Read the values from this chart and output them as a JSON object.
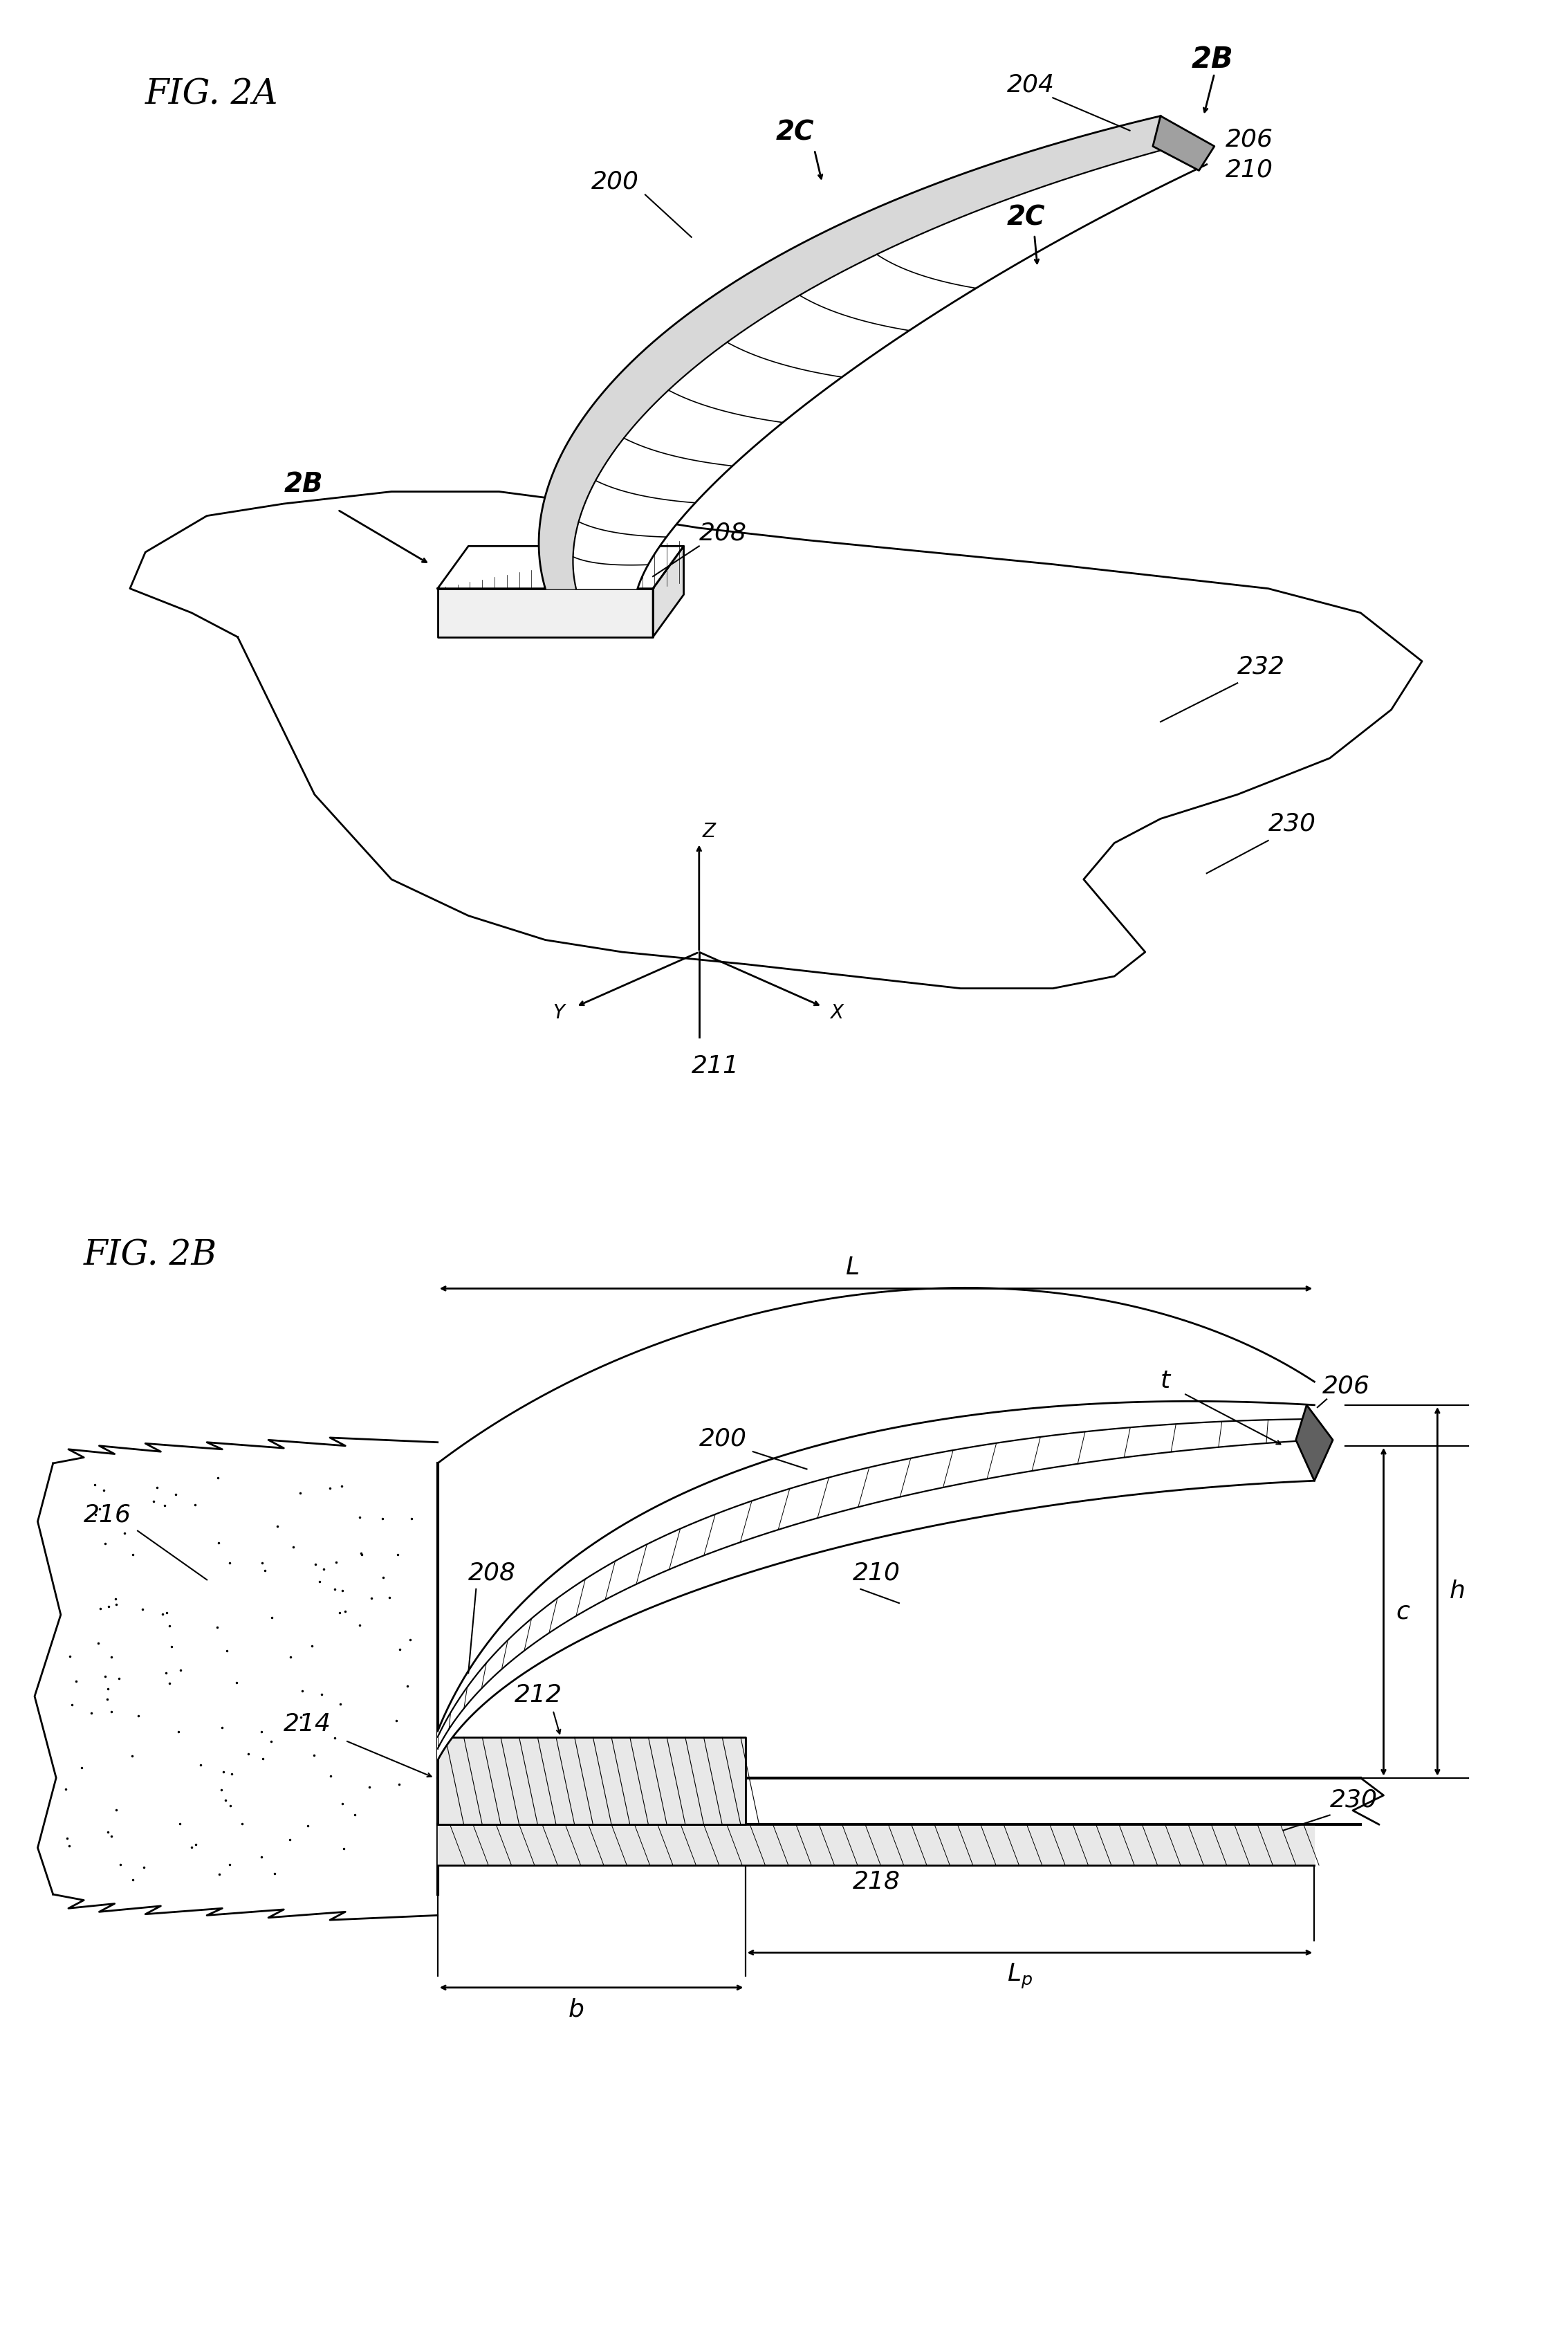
{
  "fig_title_2a": "FIG. 2A",
  "fig_title_2b": "FIG. 2B",
  "bg_color": "#ffffff",
  "line_color": "#000000",
  "font_size_title": 36,
  "font_size_label": 26,
  "font_size_axis": 20
}
